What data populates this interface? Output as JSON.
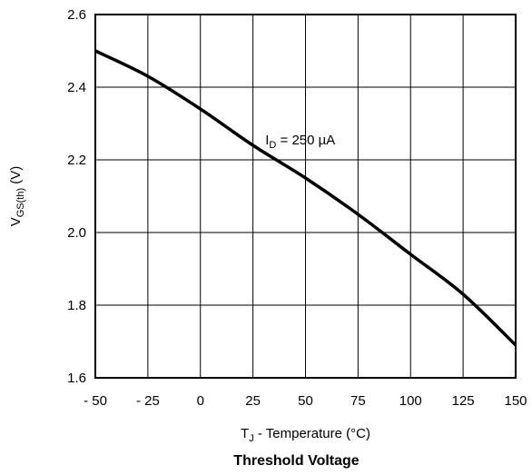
{
  "chart_data": {
    "type": "line",
    "title": "Threshold Voltage",
    "xlabel": {
      "main": "T",
      "sub": "J",
      "rest": " - Temperature (°C)"
    },
    "ylabel": {
      "main": "V",
      "sub": "GS(th)",
      "rest": "  (V)"
    },
    "xlim": [
      -50,
      150
    ],
    "ylim": [
      1.6,
      2.6
    ],
    "x_ticks": [
      -50,
      -25,
      0,
      25,
      50,
      75,
      100,
      125,
      150
    ],
    "x_tick_labels": [
      "- 50",
      "- 25",
      "0",
      "25",
      "50",
      "75",
      "100",
      "125",
      "150"
    ],
    "y_ticks": [
      1.6,
      1.8,
      2.0,
      2.2,
      2.4,
      2.6
    ],
    "y_tick_labels": [
      "1.6",
      "1.8",
      "2.0",
      "2.2",
      "2.4",
      "2.6"
    ],
    "grid": true,
    "series": [
      {
        "x": [
          -50,
          -25,
          0,
          25,
          50,
          75,
          100,
          125,
          150
        ],
        "y": [
          2.5,
          2.43,
          2.34,
          2.24,
          2.15,
          2.05,
          1.94,
          1.83,
          1.69
        ]
      }
    ],
    "annotations": [
      {
        "main": "I",
        "sub": "D",
        "rest": " = 250 µA",
        "x": 27,
        "y": 2.27
      }
    ],
    "colors": {
      "line": "#000000",
      "grid": "#000000"
    }
  }
}
